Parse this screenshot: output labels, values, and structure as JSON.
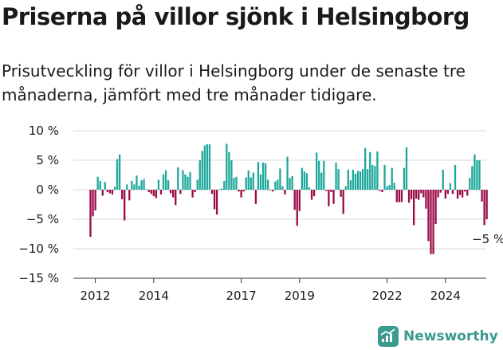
{
  "header": {
    "title": "Priserna på villor sjönk i Helsingborg",
    "subtitle": "Prisutveckling för villor i Helsingborg under de senaste tre månaderna, jämfört med tre månader tidigare."
  },
  "brand": {
    "name": "Newsworthy",
    "icon": "newsworthy-logo-icon",
    "color": "#3a9a8f"
  },
  "colors": {
    "positive": "#1ea89b",
    "negative": "#9b0a47",
    "grid": "#d9d9d9"
  },
  "chart_data": {
    "type": "bar",
    "title": "",
    "xlabel": "",
    "ylabel": "",
    "ylim": [
      -15,
      10
    ],
    "y_ticks": [
      10,
      5,
      0,
      -5,
      -10,
      -15
    ],
    "y_tick_labels": [
      "10 %",
      "5 %",
      "0 %",
      "−5 %",
      "−10 %",
      "−15 %"
    ],
    "x_ticks": [
      {
        "label": "2012",
        "index": 2
      },
      {
        "label": "2014",
        "index": 26
      },
      {
        "label": "2017",
        "index": 62
      },
      {
        "label": "2019",
        "index": 86
      },
      {
        "label": "2022",
        "index": 122
      },
      {
        "label": "2024",
        "index": 146
      }
    ],
    "grid": true,
    "annotation": {
      "text": "−5 %"
    },
    "series": [
      {
        "values": [
          -8,
          -4.5,
          -3.5,
          2.2,
          1.5,
          -1,
          1.3,
          -0.4,
          -0.6,
          -0.8,
          0.5,
          5.2,
          6,
          -1.6,
          -5.2,
          0.9,
          -1.8,
          1.5,
          0.9,
          2.4,
          0.7,
          1.6,
          1.8,
          0.1,
          -0.4,
          -0.7,
          -1.1,
          -1.4,
          1.7,
          -0.8,
          2.6,
          3.3,
          1.6,
          -0.6,
          -1.3,
          -2.6,
          3.8,
          -0.7,
          3.3,
          2.6,
          2.2,
          3,
          -1.3,
          -0.4,
          1.7,
          5,
          6.6,
          7.5,
          7.7,
          7.7,
          -0.7,
          -3.3,
          -4.2,
          0.1,
          0.2,
          1.5,
          7.8,
          6.4,
          5,
          2,
          2.2,
          -0.3,
          -1.3,
          -0.3,
          2.1,
          3.3,
          2.1,
          2.9,
          -2.4,
          4.7,
          2.6,
          4.6,
          4.5,
          1.7,
          -0.1,
          -0.3,
          1.4,
          1.7,
          3.6,
          0.6,
          -0.8,
          5.6,
          2,
          2.3,
          -3.4,
          -6.1,
          -3.6,
          3.7,
          3.1,
          2.8,
          0.4,
          -1.7,
          -1.1,
          6.3,
          4.9,
          2.9,
          4.9,
          -0.2,
          -2.8,
          -0.4,
          -2.4,
          4.6,
          3.5,
          -1.2,
          -4.1,
          0.6,
          3.4,
          1.6,
          3.4,
          2.7,
          3.2,
          3.1,
          3.5,
          7.1,
          3.5,
          6.4,
          4.2,
          4,
          6.5,
          -0.2,
          -0.4,
          4.2,
          0.6,
          0.8,
          3.7,
          1.2,
          -2.1,
          -2.1,
          -2.1,
          3.7,
          7.2,
          -2.2,
          -1.6,
          -6,
          -1.5,
          -1.7,
          -0.6,
          -1.3,
          -3.2,
          -8.7,
          -10.9,
          -10.9,
          -5.8,
          -1.3,
          -0.5,
          3.4,
          -1.5,
          -0.7,
          1.1,
          -0.7,
          4.2,
          -1.5,
          -0.9,
          -1.3,
          -0.3,
          -1,
          2,
          4,
          6,
          5,
          5,
          -2,
          -6,
          -5
        ]
      }
    ]
  }
}
